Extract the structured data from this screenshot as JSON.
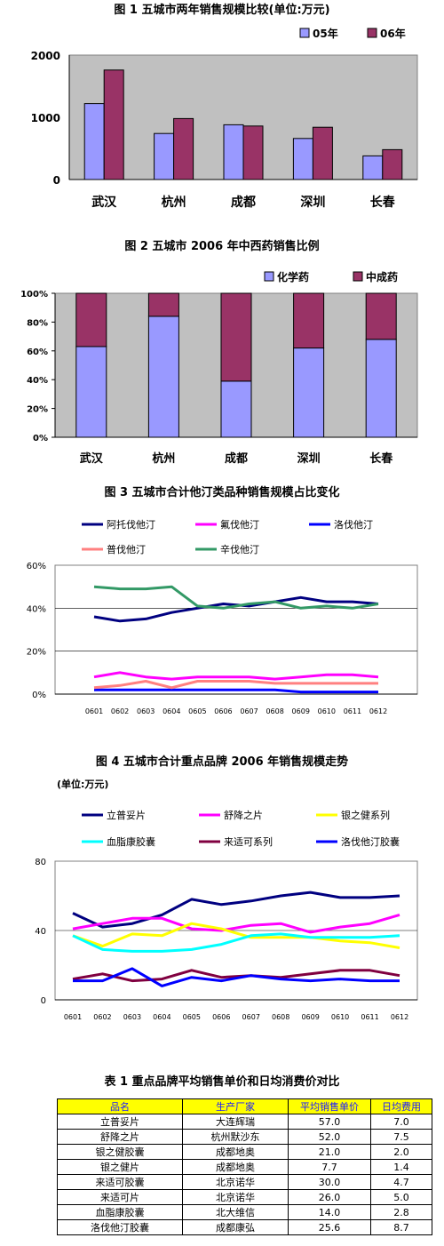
{
  "chart_data": [
    {
      "type": "bar",
      "title": "图 1 五城市两年销售规模比较(单位:万元)",
      "categories": [
        "武汉",
        "杭州",
        "成都",
        "深圳",
        "长春"
      ],
      "series": [
        {
          "name": "05年",
          "values": [
            1220,
            740,
            880,
            660,
            380
          ]
        },
        {
          "name": "06年",
          "values": [
            1760,
            980,
            860,
            840,
            480
          ]
        }
      ],
      "ylim": [
        0,
        2000
      ],
      "yticks": [
        "0",
        "1000",
        "2000"
      ],
      "colors": [
        "#9999ff",
        "#993366"
      ],
      "legend": "top-right",
      "grid": false
    },
    {
      "type": "bar",
      "stacked_percent": true,
      "title": "图 2 五城市 2006 年中西药销售比例",
      "categories": [
        "武汉",
        "杭州",
        "成都",
        "深圳",
        "长春"
      ],
      "series": [
        {
          "name": "化学药",
          "values": [
            63,
            84,
            39,
            62,
            68
          ]
        },
        {
          "name": "中成药",
          "values": [
            37,
            16,
            61,
            38,
            32
          ]
        }
      ],
      "ylim": [
        0,
        100
      ],
      "yticks": [
        "0%",
        "20%",
        "40%",
        "60%",
        "80%",
        "100%"
      ],
      "colors": [
        "#9999ff",
        "#993366"
      ],
      "legend": "top-right",
      "grid": false
    },
    {
      "type": "line",
      "title": "图 3 五城市合计他汀类品种销售规模占比变化",
      "x": [
        "0601",
        "0602",
        "0603",
        "0604",
        "0605",
        "0606",
        "0607",
        "0608",
        "0609",
        "0610",
        "0611",
        "0612"
      ],
      "series": [
        {
          "name": "阿托伐他汀",
          "color": "#000080",
          "values": [
            36,
            34,
            35,
            38,
            40,
            42,
            41,
            43,
            45,
            43,
            43,
            42
          ]
        },
        {
          "name": "氟伐他汀",
          "color": "#ff00ff",
          "values": [
            8,
            10,
            8,
            7,
            8,
            8,
            8,
            7,
            8,
            9,
            9,
            8
          ]
        },
        {
          "name": "洛伐他汀",
          "color": "#0000ff",
          "values": [
            2,
            2,
            2,
            2,
            2,
            2,
            2,
            2,
            1,
            1,
            1,
            1
          ]
        },
        {
          "name": "普伐他汀",
          "color": "#ff8080",
          "values": [
            3,
            4,
            6,
            3,
            6,
            6,
            6,
            5,
            5,
            5,
            5,
            5
          ]
        },
        {
          "name": "辛伐他汀",
          "color": "#339966",
          "values": [
            50,
            49,
            49,
            50,
            41,
            40,
            42,
            43,
            40,
            41,
            40,
            42
          ]
        }
      ],
      "ylim": [
        0,
        60
      ],
      "yticks": [
        "0%",
        "20%",
        "40%",
        "60%"
      ],
      "grid": true,
      "legend": "top"
    },
    {
      "type": "line",
      "title": "图 4 五城市合计重点品牌 2006 年销售规模走势",
      "subtitle": "(单位:万元)",
      "x": [
        "0601",
        "0602",
        "0603",
        "0604",
        "0605",
        "0606",
        "0607",
        "0608",
        "0609",
        "0610",
        "0611",
        "0612"
      ],
      "series": [
        {
          "name": "立普妥片",
          "color": "#000080",
          "values": [
            50,
            42,
            44,
            49,
            58,
            55,
            57,
            60,
            62,
            59,
            59,
            60
          ]
        },
        {
          "name": "舒降之片",
          "color": "#ff00ff",
          "values": [
            41,
            44,
            47,
            47,
            41,
            40,
            43,
            44,
            39,
            42,
            44,
            49
          ]
        },
        {
          "name": "银之健系列",
          "color": "#ffff00",
          "values": [
            37,
            31,
            38,
            37,
            44,
            41,
            36,
            36,
            36,
            34,
            33,
            30
          ]
        },
        {
          "name": "血脂康胶囊",
          "color": "#00ffff",
          "values": [
            37,
            29,
            28,
            28,
            29,
            32,
            37,
            38,
            36,
            36,
            36,
            37
          ]
        },
        {
          "name": "来适可系列",
          "color": "#800040",
          "values": [
            12,
            15,
            11,
            12,
            17,
            13,
            14,
            13,
            15,
            17,
            17,
            14
          ]
        },
        {
          "name": "洛伐他汀胶囊",
          "color": "#0000ff",
          "values": [
            11,
            11,
            18,
            8,
            13,
            11,
            14,
            12,
            11,
            12,
            11,
            11
          ]
        }
      ],
      "ylim": [
        0,
        80
      ],
      "yticks": [
        "0",
        "40",
        "80"
      ],
      "grid": true,
      "legend": "top"
    }
  ],
  "table": {
    "title": "表 1 重点品牌平均销售单价和日均消费价对比",
    "headers": [
      "品名",
      "生产厂家",
      "平均销售单价",
      "日均费用"
    ],
    "rows": [
      [
        "立普妥片",
        "大连辉瑞",
        "57.0",
        "7.0"
      ],
      [
        "舒降之片",
        "杭州默沙东",
        "52.0",
        "7.5"
      ],
      [
        "银之健胶囊",
        "成都地奥",
        "21.0",
        "2.0"
      ],
      [
        "银之健片",
        "成都地奥",
        "7.7",
        "1.4"
      ],
      [
        "来适可胶囊",
        "北京诺华",
        "30.0",
        "4.7"
      ],
      [
        "来适可片",
        "北京诺华",
        "26.0",
        "5.0"
      ],
      [
        "血脂康胶囊",
        "北大维信",
        "14.0",
        "2.8"
      ],
      [
        "洛伐他汀胶囊",
        "成都康弘",
        "25.6",
        "8.7"
      ]
    ]
  }
}
